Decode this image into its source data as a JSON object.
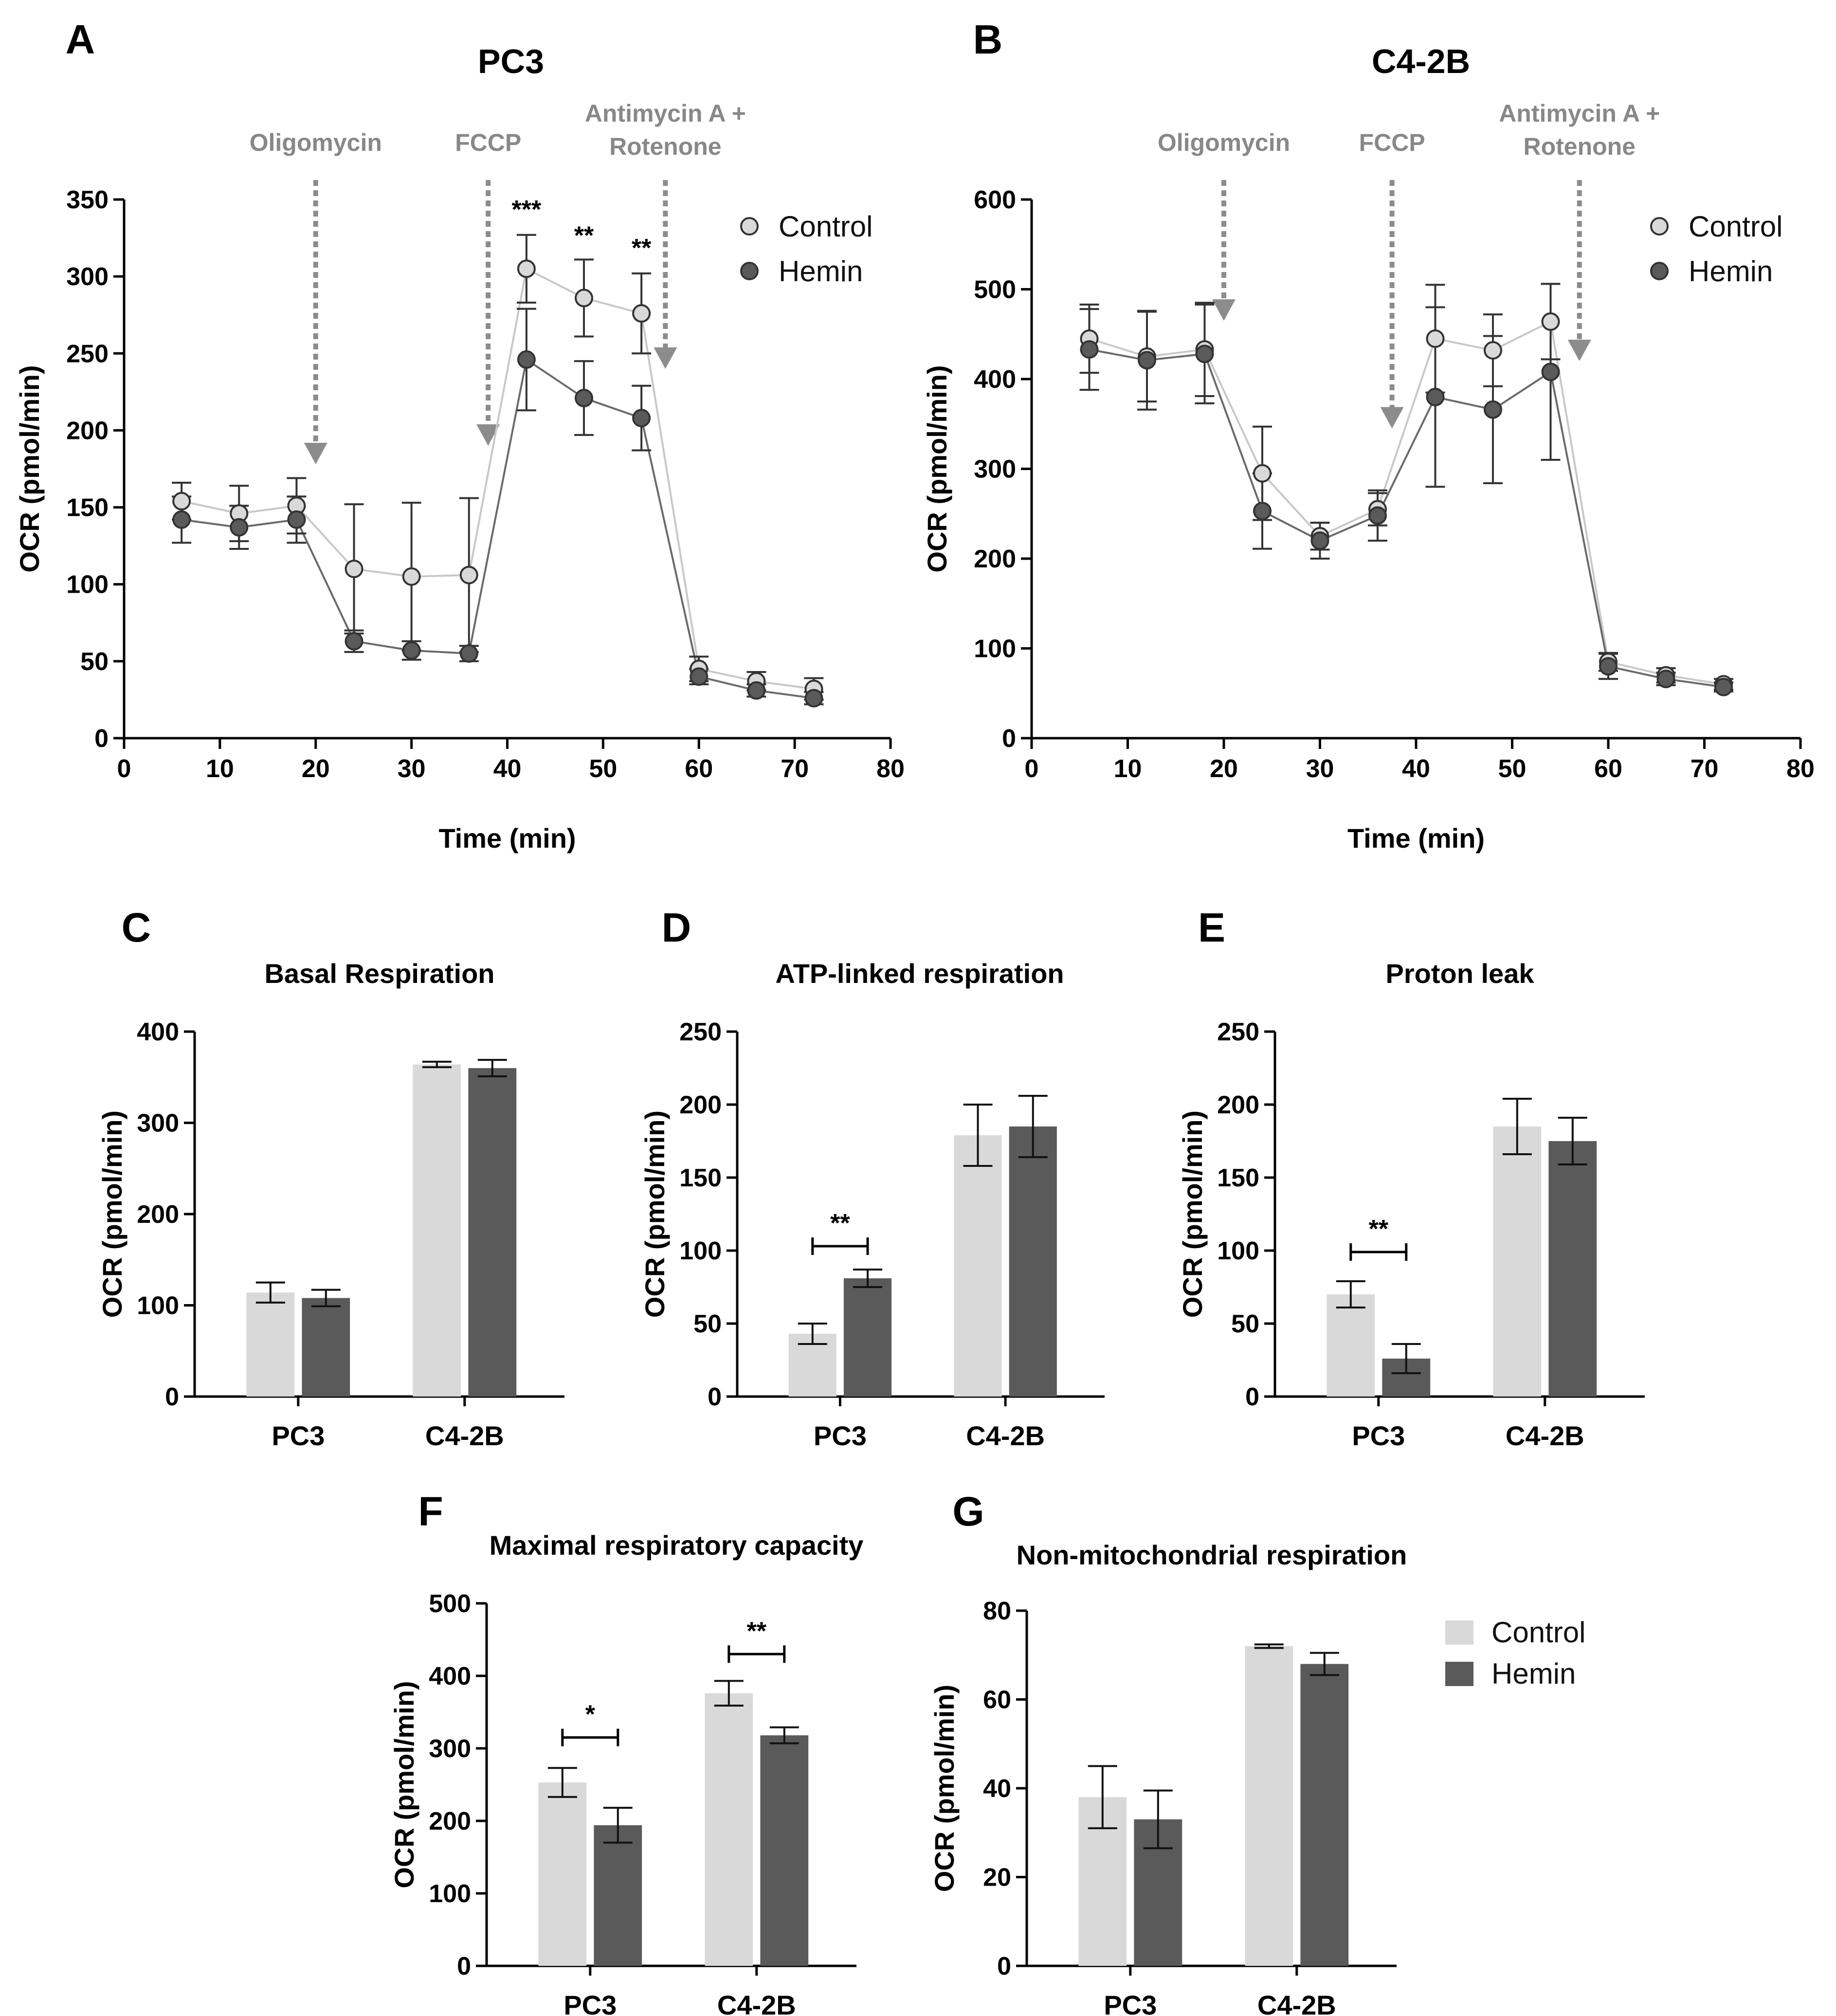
{
  "colors": {
    "control": "#d9d9d9",
    "hemin": "#5a5a5a",
    "injection": "#8c8c8c",
    "axis": "#000000"
  },
  "legend": {
    "control": "Control",
    "hemin": "Hemin"
  },
  "chart_data": [
    {
      "id": "A",
      "panel_label": "A",
      "type": "line",
      "title": "PC3",
      "xlabel": "Time (min)",
      "ylabel": "OCR (pmol/min)",
      "xlim": [
        0,
        80
      ],
      "ylim": [
        0,
        350
      ],
      "xticks": [
        0,
        10,
        20,
        30,
        40,
        50,
        60,
        70,
        80
      ],
      "yticks": [
        0,
        50,
        100,
        150,
        200,
        250,
        300,
        350
      ],
      "x": [
        6,
        12,
        18,
        24,
        30,
        36,
        42,
        48,
        54,
        60,
        66,
        72
      ],
      "series": [
        {
          "name": "Control",
          "values": [
            154,
            146,
            151,
            110,
            105,
            106,
            305,
            286,
            276,
            45,
            37,
            32
          ],
          "err": [
            12,
            18,
            18,
            42,
            48,
            50,
            22,
            25,
            26,
            8,
            6,
            7
          ]
        },
        {
          "name": "Hemin",
          "values": [
            142,
            137,
            142,
            63,
            57,
            55,
            246,
            221,
            208,
            40,
            31,
            26
          ],
          "err": [
            15,
            14,
            15,
            7,
            6,
            5,
            33,
            24,
            21,
            5,
            4,
            4
          ]
        }
      ],
      "injections": [
        {
          "label": "Oligomycin",
          "x": 20,
          "y_tip": 178
        },
        {
          "label": "FCCP",
          "x": 38,
          "y_tip": 190
        },
        {
          "label": "Antimycin A + Rotenone",
          "x": 56.5,
          "y_tip": 240
        }
      ],
      "significance": [
        {
          "x": 42,
          "text": "***",
          "y": 338
        },
        {
          "x": 48,
          "text": "**",
          "y": 321
        },
        {
          "x": 54,
          "text": "**",
          "y": 313
        }
      ]
    },
    {
      "id": "B",
      "panel_label": "B",
      "type": "line",
      "title": "C4-2B",
      "xlabel": "Time (min)",
      "ylabel": "OCR (pmol/min)",
      "xlim": [
        0,
        80
      ],
      "ylim": [
        0,
        600
      ],
      "xticks": [
        0,
        10,
        20,
        30,
        40,
        50,
        60,
        70,
        80
      ],
      "yticks": [
        0,
        100,
        200,
        300,
        400,
        500,
        600
      ],
      "x": [
        6,
        12,
        18,
        24,
        30,
        36,
        42,
        48,
        54,
        60,
        66,
        72
      ],
      "series": [
        {
          "name": "Control",
          "values": [
            445,
            425,
            433,
            295,
            225,
            255,
            445,
            432,
            464,
            85,
            70,
            60
          ],
          "err": [
            38,
            50,
            52,
            52,
            15,
            18,
            60,
            40,
            42,
            10,
            8,
            6
          ]
        },
        {
          "name": "Hemin",
          "values": [
            433,
            421,
            428,
            253,
            220,
            248,
            380,
            366,
            408,
            80,
            66,
            57
          ],
          "err": [
            45,
            55,
            55,
            42,
            20,
            28,
            100,
            82,
            98,
            14,
            7,
            5
          ]
        }
      ],
      "injections": [
        {
          "label": "Oligomycin",
          "x": 20,
          "y_tip": 465
        },
        {
          "label": "FCCP",
          "x": 37.5,
          "y_tip": 345
        },
        {
          "label": "Antimycin A + Rotenone",
          "x": 57,
          "y_tip": 420
        }
      ],
      "significance": []
    },
    {
      "id": "C",
      "panel_label": "C",
      "type": "bar",
      "title": "Basal Respiration",
      "ylabel": "OCR (pmol/min)",
      "categories": [
        "PC3",
        "C4-2B"
      ],
      "ylim": [
        0,
        400
      ],
      "yticks": [
        0,
        100,
        200,
        300,
        400
      ],
      "series": [
        {
          "name": "Control",
          "values": [
            114,
            364
          ],
          "err": [
            11,
            3
          ]
        },
        {
          "name": "Hemin",
          "values": [
            108,
            360
          ],
          "err": [
            9,
            9
          ]
        }
      ],
      "significance": []
    },
    {
      "id": "D",
      "panel_label": "D",
      "type": "bar",
      "title": "ATP-linked respiration",
      "ylabel": "OCR (pmol/min)",
      "categories": [
        "PC3",
        "C4-2B"
      ],
      "ylim": [
        0,
        250
      ],
      "yticks": [
        0,
        50,
        100,
        150,
        200,
        250
      ],
      "series": [
        {
          "name": "Control",
          "values": [
            43,
            179
          ],
          "err": [
            7,
            21
          ]
        },
        {
          "name": "Hemin",
          "values": [
            81,
            185
          ],
          "err": [
            6,
            21
          ]
        }
      ],
      "significance": [
        {
          "category": 0,
          "text": "**",
          "y": 103
        }
      ]
    },
    {
      "id": "E",
      "panel_label": "E",
      "type": "bar",
      "title": "Proton leak",
      "ylabel": "OCR (pmol/min)",
      "categories": [
        "PC3",
        "C4-2B"
      ],
      "ylim": [
        0,
        250
      ],
      "yticks": [
        0,
        50,
        100,
        150,
        200,
        250
      ],
      "series": [
        {
          "name": "Control",
          "values": [
            70,
            185
          ],
          "err": [
            9,
            19
          ]
        },
        {
          "name": "Hemin",
          "values": [
            26,
            175
          ],
          "err": [
            10,
            16
          ]
        }
      ],
      "significance": [
        {
          "category": 0,
          "text": "**",
          "y": 99
        }
      ]
    },
    {
      "id": "F",
      "panel_label": "F",
      "type": "bar",
      "title": "Maximal respiratory capacity",
      "ylabel": "OCR (pmol/min)",
      "categories": [
        "PC3",
        "C4-2B"
      ],
      "ylim": [
        0,
        500
      ],
      "yticks": [
        0,
        100,
        200,
        300,
        400,
        500
      ],
      "series": [
        {
          "name": "Control",
          "values": [
            253,
            376
          ],
          "err": [
            20,
            17
          ]
        },
        {
          "name": "Hemin",
          "values": [
            194,
            318
          ],
          "err": [
            24,
            11
          ]
        }
      ],
      "significance": [
        {
          "category": 0,
          "text": "*",
          "y": 315
        },
        {
          "category": 1,
          "text": "**",
          "y": 430
        }
      ]
    },
    {
      "id": "G",
      "panel_label": "G",
      "type": "bar",
      "title": "Non-mitochondrial respiration",
      "ylabel": "OCR (pmol/min)",
      "categories": [
        "PC3",
        "C4-2B"
      ],
      "ylim": [
        0,
        80
      ],
      "yticks": [
        0,
        20,
        40,
        60,
        80
      ],
      "series": [
        {
          "name": "Control",
          "values": [
            38,
            72
          ],
          "err": [
            7,
            0.4
          ]
        },
        {
          "name": "Hemin",
          "values": [
            33,
            68
          ],
          "err": [
            6.5,
            2.5
          ]
        }
      ],
      "significance": [],
      "legend_shown": true
    }
  ]
}
